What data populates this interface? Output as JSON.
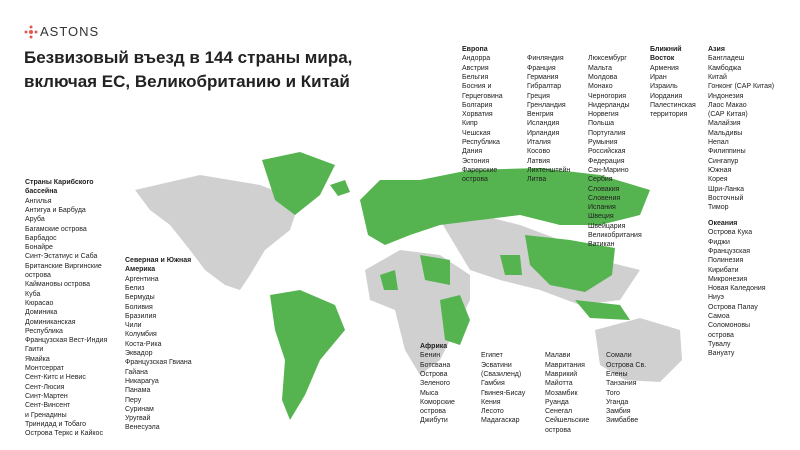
{
  "header": {
    "logo": "ASTONS",
    "title": [
      "Безвизовый въезд в 144 страны мира,",
      "включая ЕС, Великобританию и Китай"
    ]
  },
  "regions": [
    {
      "heading": [
        "Страны Карибского",
        "бассейна"
      ],
      "columns": [
        [
          "Ангилья",
          "Антигуа и Барбуда",
          "Аруба",
          "Багамские острова",
          "Барбадос",
          "Бонайре",
          "Синт-Эстатиус и Саба",
          "Британские Виргинские",
          "острова",
          "Каймановы острова",
          "Куба",
          "Кюрасао",
          "Доминика",
          "Доминиканская",
          "Республика",
          "Французская Вест-Индия",
          "Гаити",
          "Ямайка",
          "Монтсеррат",
          "Сент-Китс и Невис",
          "Сент-Люсия",
          "Синт-Мартен",
          "Сент-Винсент",
          "и Гренадины",
          "Тринидад и Тобаго",
          "Острова Теркс и Кайкос"
        ]
      ]
    },
    {
      "heading": [
        "Северная и Южная",
        "Америка"
      ],
      "columns": [
        [
          "Аргентина",
          "Белиз",
          "Бермуды",
          "Боливия",
          "Бразилия",
          "Чили",
          "Колумбия",
          "Коста-Рика",
          "Эквадор",
          "Французская Гвиана",
          "Гайана",
          "Никарагуа",
          "Панама",
          "Перу",
          "Суринам",
          "Уругвай",
          "Венесуэла"
        ]
      ]
    },
    {
      "heading": [
        "Европа"
      ],
      "columns": [
        [
          "Андорра",
          "Австрия",
          "Бельгия",
          "Босния и",
          "Герцеговина",
          "Болгария",
          "Хорватия",
          "Кипр",
          "Чешская",
          "Республика",
          "Дания",
          "Эстония",
          "Фарерские",
          "острова"
        ],
        [
          "Финляндия",
          "Франция",
          "Германия",
          "Гибралтар",
          "Греция",
          "Гренландия",
          "Венгрия",
          "Исландия",
          "Ирландия",
          "Италия",
          "Косово",
          "Латвия",
          "Лихтенштейн",
          "Литва"
        ],
        [
          "Люксембург",
          "Мальта",
          "Молдова",
          "Монако",
          "Черногория",
          "Нидерланды",
          "Норвегия",
          "Польша",
          "Португалия",
          "Румыния",
          "Российская",
          "Федерация",
          "Сан-Марино",
          "Сербия",
          "Словакия",
          "Словения",
          "Испания",
          "Швеция",
          "Швейцария",
          "Великобритания",
          "Ватикан"
        ]
      ]
    },
    {
      "heading": [
        "Ближний",
        "Восток"
      ],
      "columns": [
        [
          "Армения",
          "Иран",
          "Израиль",
          "Иордания",
          "Палестинская",
          "территория"
        ]
      ]
    },
    {
      "heading": [
        "Азия"
      ],
      "columns": [
        [
          "Бангладеш",
          "Камбоджа",
          "Китай",
          "Гонконг (САР Китая)",
          "Индонезия",
          "Лаос Макао",
          "(САР Китая)",
          "Малайзия",
          "Мальдивы",
          "Непал",
          "Филиппины",
          "Сингапур",
          "Южная",
          "Корея",
          "Шри-Ланка",
          "Восточный",
          "Тимор"
        ]
      ]
    },
    {
      "heading": [
        "Океания"
      ],
      "columns": [
        [
          "Острова Кука",
          "Фиджи",
          "Французская",
          "Полинезия",
          "Кирибати",
          "Микронезия",
          "Новая Каледония",
          "Ниуэ",
          "Острова Палау",
          "Самоа",
          "Соломоновы",
          "острова",
          "Тувалу",
          "Вануату"
        ]
      ]
    },
    {
      "heading": [
        "Африка"
      ],
      "columns": [
        [
          "Бенин",
          "Ботсвана",
          "Острова",
          "Зеленого",
          "Мыса",
          "Коморские",
          "острова",
          "Джибути"
        ],
        [
          "Египет",
          "Эсватини",
          "(Свазиленд)",
          "Гамбия",
          "Гвинея-Бисау",
          "Кения",
          "Лесото",
          "Мадагаскар"
        ],
        [
          "Малави",
          "Мавритания",
          "Маврикий",
          "Майотта",
          "Мозамбик",
          "Руанда",
          "Сенегал",
          "Сейшельские",
          "острова"
        ],
        [
          "Сомали",
          "Острова Св.",
          "Елены",
          "Танзания",
          "Того",
          "Уганда",
          "Замбия",
          "Зимбабве"
        ]
      ]
    }
  ]
}
